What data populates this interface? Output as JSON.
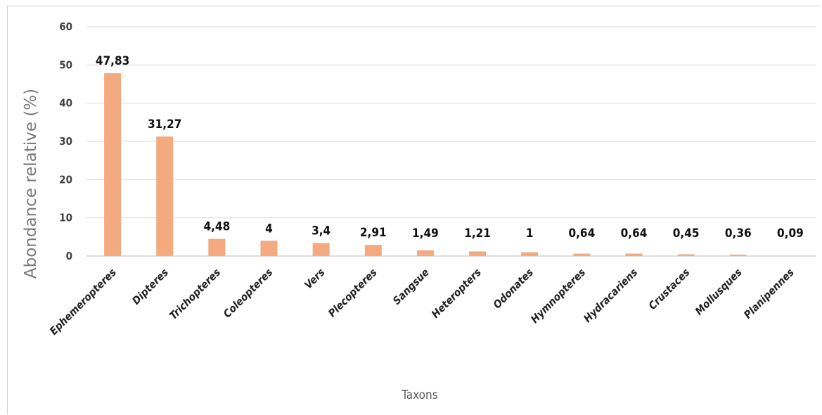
{
  "chart_data": {
    "type": "bar",
    "xlabel": "Taxons",
    "ylabel": "Abondance relative (%)",
    "ylim": [
      0,
      60
    ],
    "yticks": [
      "0",
      "10",
      "20",
      "30",
      "40",
      "50",
      "60"
    ],
    "grid": true,
    "legend": "none",
    "bar_color": "#f4a97f",
    "categories": [
      "Ephemeropteres",
      "Dipteres",
      "Trichopteres",
      "Coleopteres",
      "Vers",
      "Plecopteres",
      "Sangsue",
      "Heteropters",
      "Odonates",
      "Hymnopteres",
      "Hydracariens",
      "Crustaces",
      "Mollusques",
      "Planipennes"
    ],
    "values": [
      47.83,
      31.27,
      4.48,
      4,
      3.4,
      2.91,
      1.49,
      1.21,
      1,
      0.64,
      0.64,
      0.45,
      0.36,
      0.09
    ],
    "data_labels": [
      "47,83",
      "31,27",
      "4,48",
      "4",
      "3,4",
      "2,91",
      "1,49",
      "1,21",
      "1",
      "0,64",
      "0,64",
      "0,45",
      "0,36",
      "0,09"
    ]
  }
}
